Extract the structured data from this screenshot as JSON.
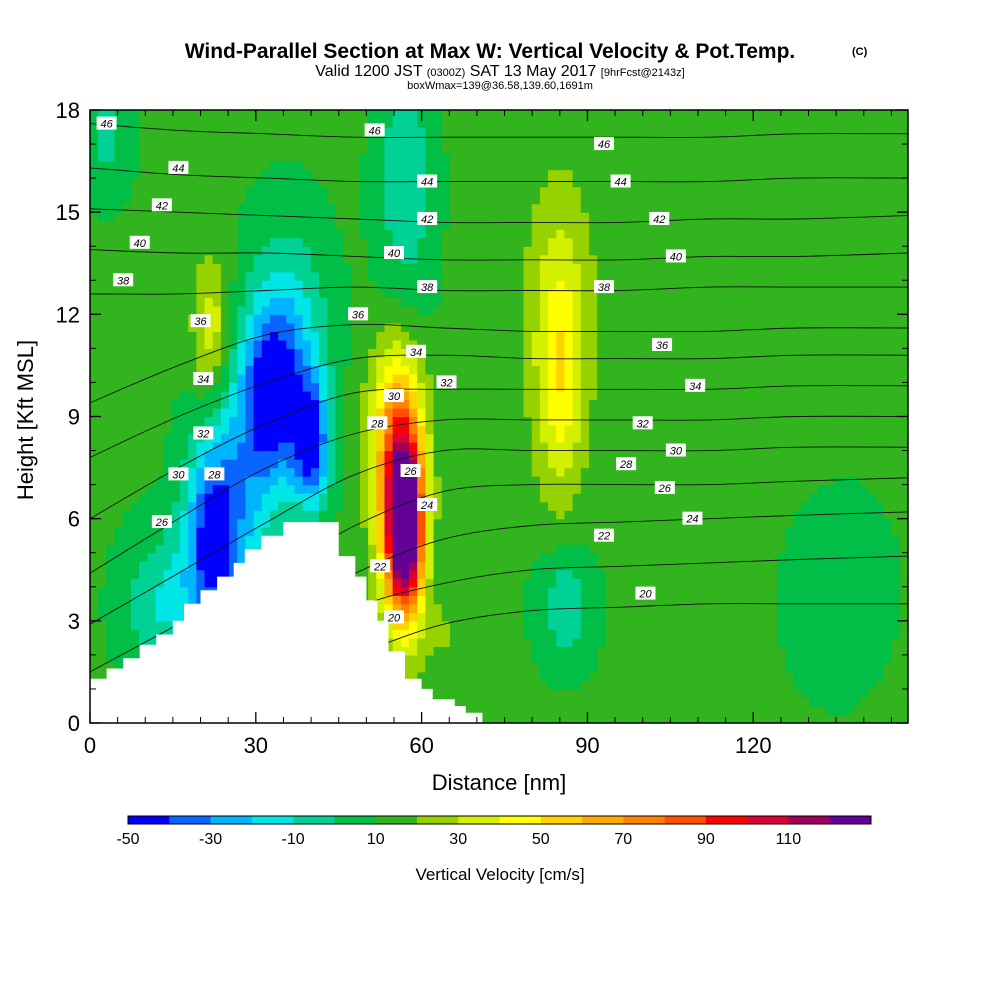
{
  "chart_data": {
    "type": "heatmap",
    "title": "Wind-Parallel Section at Max W: Vertical Velocity & Pot.Temp.",
    "title_mark": "(C)",
    "subtitle_parts": [
      "Valid 1200 JST",
      "(0300Z)",
      "SAT 13 May 2017",
      "[9hrFcst@2143z]"
    ],
    "subtitle2": "boxWmax=139@36.58,139.60,1691m",
    "xlabel": "Distance [nm]",
    "ylabel": "Height [Kft MSL]",
    "xlim": [
      0,
      148
    ],
    "ylim": [
      0,
      18
    ],
    "x_ticks": [
      0,
      30,
      60,
      90,
      120
    ],
    "y_ticks": [
      0,
      3,
      6,
      9,
      12,
      15,
      18
    ],
    "colorbar": {
      "label": "Vertical Velocity [cm/s]",
      "bins": [
        -50,
        -40,
        -30,
        -20,
        -10,
        0,
        10,
        20,
        30,
        40,
        50,
        60,
        70,
        80,
        90,
        100,
        110,
        120
      ],
      "tick_labels": [
        "-50",
        "-30",
        "-10",
        "10",
        "30",
        "50",
        "70",
        "90",
        "110"
      ],
      "colors": [
        "#0000ff",
        "#0a64ff",
        "#00b4ff",
        "#00e6e6",
        "#00d296",
        "#00be46",
        "#32b41e",
        "#96d200",
        "#d2f000",
        "#ffff00",
        "#ffd200",
        "#ffaa00",
        "#ff8200",
        "#ff5000",
        "#ff0000",
        "#dc0032",
        "#a0005a",
        "#640096"
      ]
    },
    "background_w": 12,
    "w_features": [
      {
        "x": 40,
        "y": 8.2,
        "sx": 2.3,
        "sy": 1.3,
        "peak": -55
      },
      {
        "x": 33,
        "y": 9.5,
        "sx": 3.5,
        "sy": 1.7,
        "peak": -45
      },
      {
        "x": 36,
        "y": 11.2,
        "sx": 5,
        "sy": 2.3,
        "peak": -28
      },
      {
        "x": 22,
        "y": 5.2,
        "sx": 3.5,
        "sy": 2,
        "peak": -48
      },
      {
        "x": 27,
        "y": 7,
        "sx": 5,
        "sy": 3,
        "peak": -28
      },
      {
        "x": 13,
        "y": 3.5,
        "sx": 5,
        "sy": 1.5,
        "peak": -22
      },
      {
        "x": 3,
        "y": 17.2,
        "sx": 3,
        "sy": 1.2,
        "peak": -15
      },
      {
        "x": 57,
        "y": 5.8,
        "sx": 2.1,
        "sy": 1.6,
        "peak": 120
      },
      {
        "x": 56,
        "y": 7,
        "sx": 3.2,
        "sy": 2.8,
        "peak": 62
      },
      {
        "x": 55,
        "y": 9,
        "sx": 3.5,
        "sy": 1.5,
        "peak": 18
      },
      {
        "x": 57,
        "y": 15.5,
        "sx": 3.5,
        "sy": 3.5,
        "peak": -20
      },
      {
        "x": 85,
        "y": 10,
        "sx": 3,
        "sy": 2.5,
        "peak": 28
      },
      {
        "x": 85,
        "y": 12.5,
        "sx": 5,
        "sy": 3,
        "peak": 15
      },
      {
        "x": 22,
        "y": 11.5,
        "sx": 2.5,
        "sy": 1.5,
        "peak": 28
      },
      {
        "x": 86,
        "y": 3.5,
        "sx": 3.5,
        "sy": 1.2,
        "peak": -20
      },
      {
        "x": 135,
        "y": 4,
        "sx": 8,
        "sy": 2.5,
        "peak": -6
      },
      {
        "x": 120,
        "y": 12,
        "sx": 12,
        "sy": 4,
        "peak": 3
      },
      {
        "x": 65,
        "y": 2.5,
        "sx": 4,
        "sy": 1,
        "peak": 8
      }
    ],
    "terrain": [
      [
        0,
        1.3
      ],
      [
        3,
        1.3
      ],
      [
        3,
        1.6
      ],
      [
        6,
        1.6
      ],
      [
        6,
        1.9
      ],
      [
        9,
        1.9
      ],
      [
        9,
        2.3
      ],
      [
        12,
        2.3
      ],
      [
        12,
        2.6
      ],
      [
        15,
        2.6
      ],
      [
        15,
        3
      ],
      [
        17,
        3
      ],
      [
        17,
        3.5
      ],
      [
        20,
        3.5
      ],
      [
        20,
        3.9
      ],
      [
        23,
        3.9
      ],
      [
        23,
        4.3
      ],
      [
        26,
        4.3
      ],
      [
        26,
        4.7
      ],
      [
        28,
        4.7
      ],
      [
        28,
        5.1
      ],
      [
        31,
        5.1
      ],
      [
        31,
        5.5
      ],
      [
        35,
        5.5
      ],
      [
        35,
        5.9
      ],
      [
        45,
        5.9
      ],
      [
        45,
        4.9
      ],
      [
        48,
        4.9
      ],
      [
        48,
        4.3
      ],
      [
        50,
        4.3
      ],
      [
        50,
        3.6
      ],
      [
        52,
        3.6
      ],
      [
        52,
        3
      ],
      [
        54,
        3
      ],
      [
        54,
        2.1
      ],
      [
        57,
        2.1
      ],
      [
        57,
        1.3
      ],
      [
        60,
        1.3
      ],
      [
        60,
        1
      ],
      [
        62,
        1
      ],
      [
        62,
        0.7
      ],
      [
        66,
        0.7
      ],
      [
        66,
        0.5
      ],
      [
        68,
        0.5
      ],
      [
        68,
        0.3
      ],
      [
        71,
        0.3
      ],
      [
        71,
        0
      ],
      [
        148,
        0
      ]
    ],
    "theta_contours": [
      {
        "label": 20,
        "heights": [
          0,
          0.3,
          1,
          2,
          2.9,
          3.3,
          3.4,
          3.5,
          3.5,
          3.5
        ]
      },
      {
        "label": 22,
        "heights": [
          0.3,
          1,
          2.2,
          3.4,
          4.1,
          4.5,
          4.6,
          4.7,
          4.8,
          4.9
        ]
      },
      {
        "label": 24,
        "heights": [
          0.7,
          1.7,
          3,
          4.4,
          5.4,
          5.8,
          5.9,
          6,
          6.1,
          6.2
        ]
      },
      {
        "label": 26,
        "heights": [
          1.5,
          2.9,
          4.3,
          5.8,
          6.8,
          7,
          7,
          7,
          7.1,
          7.2
        ]
      },
      {
        "label": 28,
        "heights": [
          2.9,
          4.4,
          5.9,
          7.3,
          8,
          8,
          8,
          8,
          8.1,
          8.1
        ]
      },
      {
        "label": 30,
        "heights": [
          4.4,
          6,
          7.5,
          8.5,
          8.9,
          8.9,
          8.9,
          8.9,
          9,
          9
        ]
      },
      {
        "label": 32,
        "heights": [
          6,
          7.5,
          8.8,
          9.7,
          9.8,
          9.8,
          9.8,
          9.8,
          9.9,
          9.9
        ]
      },
      {
        "label": 34,
        "heights": [
          7.8,
          9,
          10,
          10.7,
          10.8,
          10.7,
          10.7,
          10.7,
          10.8,
          10.8
        ]
      },
      {
        "label": 36,
        "heights": [
          9.4,
          10.5,
          11.4,
          11.7,
          11.6,
          11.5,
          11.5,
          11.5,
          11.6,
          11.6
        ]
      },
      {
        "label": 38,
        "heights": [
          12.6,
          12.6,
          12.7,
          12.8,
          12.7,
          12.7,
          12.7,
          12.8,
          12.8,
          12.8
        ]
      },
      {
        "label": 40,
        "heights": [
          13.9,
          13.8,
          13.8,
          13.7,
          13.6,
          13.6,
          13.6,
          13.7,
          13.7,
          13.8
        ]
      },
      {
        "label": 42,
        "heights": [
          15.1,
          15,
          14.9,
          14.8,
          14.7,
          14.7,
          14.7,
          14.8,
          14.8,
          14.9
        ]
      },
      {
        "label": 44,
        "heights": [
          16.3,
          16.1,
          16,
          15.9,
          15.9,
          15.9,
          15.9,
          15.9,
          16,
          16
        ]
      },
      {
        "label": 46,
        "heights": [
          17.6,
          17.4,
          17.3,
          17.2,
          17.2,
          17.2,
          17.2,
          17.2,
          17.3,
          17.3
        ]
      }
    ],
    "contour_xs": [
      0,
      16,
      32,
      48,
      64,
      80,
      96,
      112,
      128,
      148
    ],
    "contour_labels": [
      {
        "text": "46",
        "x": 3,
        "y": 17.6
      },
      {
        "text": "44",
        "x": 16,
        "y": 16.3
      },
      {
        "text": "42",
        "x": 13,
        "y": 15.2
      },
      {
        "text": "40",
        "x": 9,
        "y": 14.1
      },
      {
        "text": "38",
        "x": 6,
        "y": 13
      },
      {
        "text": "36",
        "x": 20,
        "y": 11.8
      },
      {
        "text": "34",
        "x": 20.5,
        "y": 10.1
      },
      {
        "text": "32",
        "x": 20.5,
        "y": 8.5
      },
      {
        "text": "30",
        "x": 16,
        "y": 7.3
      },
      {
        "text": "28",
        "x": 22.5,
        "y": 7.3
      },
      {
        "text": "26",
        "x": 13,
        "y": 5.9
      },
      {
        "text": "46",
        "x": 51.5,
        "y": 17.4
      },
      {
        "text": "44",
        "x": 61,
        "y": 15.9
      },
      {
        "text": "42",
        "x": 61,
        "y": 14.8
      },
      {
        "text": "40",
        "x": 55,
        "y": 13.8
      },
      {
        "text": "38",
        "x": 61,
        "y": 12.8
      },
      {
        "text": "36",
        "x": 48.5,
        "y": 12
      },
      {
        "text": "34",
        "x": 59,
        "y": 10.9
      },
      {
        "text": "32",
        "x": 64.5,
        "y": 10
      },
      {
        "text": "30",
        "x": 55,
        "y": 9.6
      },
      {
        "text": "28",
        "x": 52,
        "y": 8.8
      },
      {
        "text": "26",
        "x": 58,
        "y": 7.4
      },
      {
        "text": "24",
        "x": 61,
        "y": 6.4
      },
      {
        "text": "22",
        "x": 52.5,
        "y": 4.6
      },
      {
        "text": "20",
        "x": 55,
        "y": 3.1
      },
      {
        "text": "46",
        "x": 93,
        "y": 17
      },
      {
        "text": "44",
        "x": 96,
        "y": 15.9
      },
      {
        "text": "42",
        "x": 103,
        "y": 14.8
      },
      {
        "text": "40",
        "x": 106,
        "y": 13.7
      },
      {
        "text": "38",
        "x": 93,
        "y": 12.8
      },
      {
        "text": "36",
        "x": 103.5,
        "y": 11.1
      },
      {
        "text": "34",
        "x": 109.5,
        "y": 9.9
      },
      {
        "text": "32",
        "x": 100,
        "y": 8.8
      },
      {
        "text": "30",
        "x": 106,
        "y": 8
      },
      {
        "text": "28",
        "x": 97,
        "y": 7.6
      },
      {
        "text": "26",
        "x": 104,
        "y": 6.9
      },
      {
        "text": "24",
        "x": 109,
        "y": 6
      },
      {
        "text": "22",
        "x": 93,
        "y": 5.5
      },
      {
        "text": "20",
        "x": 100.5,
        "y": 3.8
      }
    ]
  }
}
